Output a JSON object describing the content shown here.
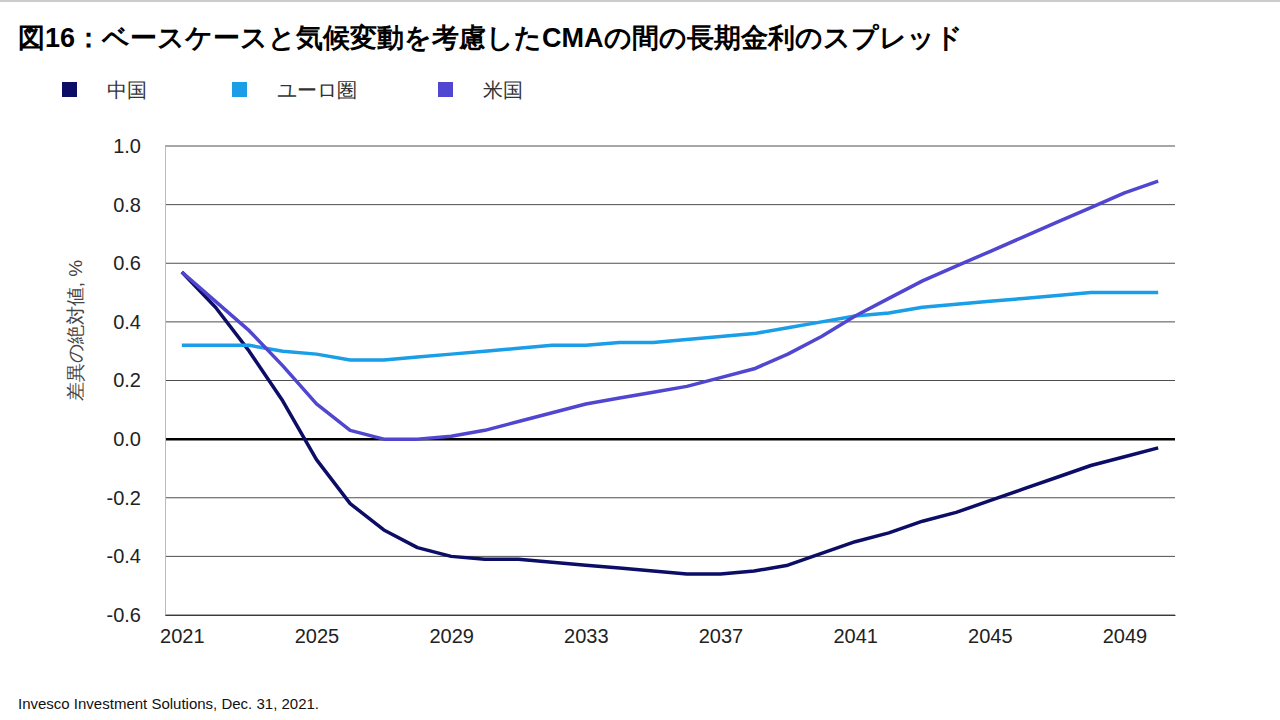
{
  "chart_data": {
    "type": "line",
    "title": "図16：ベースケースと気候変動を考慮したCMAの間の長期金利のスプレッド",
    "y_label": "差異の絶対値, %",
    "source": "Invesco Investment Solutions, Dec. 31, 2021.",
    "x": [
      2021,
      2022,
      2023,
      2024,
      2025,
      2026,
      2027,
      2028,
      2029,
      2030,
      2031,
      2032,
      2033,
      2034,
      2035,
      2036,
      2037,
      2038,
      2039,
      2040,
      2041,
      2042,
      2043,
      2044,
      2045,
      2046,
      2047,
      2048,
      2049,
      2050
    ],
    "xlim": [
      2020.5,
      2050.5
    ],
    "xticks": [
      2021,
      2025,
      2029,
      2033,
      2037,
      2041,
      2045,
      2049
    ],
    "ylim": [
      -0.6,
      1.0
    ],
    "yticks": [
      -0.6,
      -0.4,
      -0.2,
      {
        "value": 0,
        "label": "0.0"
      },
      0.2,
      0.4,
      0.6,
      0.8,
      {
        "value": 1,
        "label": "1.0"
      }
    ],
    "grid": true,
    "legend": "top-left",
    "series": [
      {
        "name": "中国",
        "color": "#0c0d66",
        "values": [
          0.57,
          0.45,
          0.3,
          0.13,
          -0.07,
          -0.22,
          -0.31,
          -0.37,
          -0.4,
          -0.41,
          -0.41,
          -0.42,
          -0.43,
          -0.44,
          -0.45,
          -0.46,
          -0.46,
          -0.45,
          -0.43,
          -0.39,
          -0.35,
          -0.32,
          -0.28,
          -0.25,
          -0.21,
          -0.17,
          -0.13,
          -0.09,
          -0.06,
          -0.03
        ]
      },
      {
        "name": "ユーロ圏",
        "color": "#1a9ee8",
        "values": [
          0.32,
          0.32,
          0.32,
          0.3,
          0.29,
          0.27,
          0.27,
          0.28,
          0.29,
          0.3,
          0.31,
          0.32,
          0.32,
          0.33,
          0.33,
          0.34,
          0.35,
          0.36,
          0.38,
          0.4,
          0.42,
          0.43,
          0.45,
          0.46,
          0.47,
          0.48,
          0.49,
          0.5,
          0.5,
          0.5
        ]
      },
      {
        "name": "米国",
        "color": "#5046d0",
        "values": [
          0.57,
          0.47,
          0.37,
          0.25,
          0.12,
          0.03,
          0.0,
          0.0,
          0.01,
          0.03,
          0.06,
          0.09,
          0.12,
          0.14,
          0.16,
          0.18,
          0.21,
          0.24,
          0.29,
          0.35,
          0.42,
          0.48,
          0.54,
          0.59,
          0.64,
          0.69,
          0.74,
          0.79,
          0.84,
          0.88
        ]
      }
    ]
  }
}
